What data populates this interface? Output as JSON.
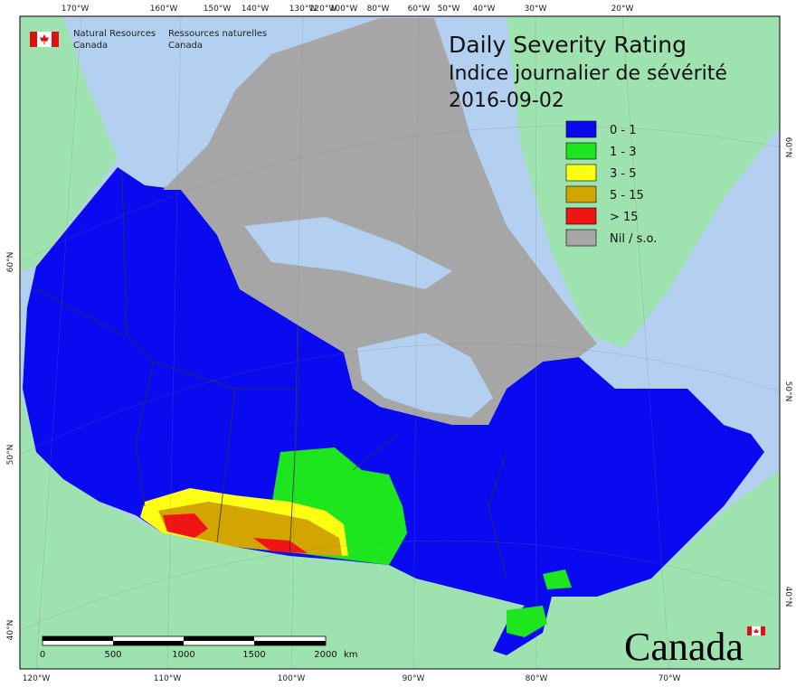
{
  "header": {
    "agency_en": [
      "Natural Resources",
      "Canada"
    ],
    "agency_fr": [
      "Ressources naturelles",
      "Canada"
    ]
  },
  "title": {
    "line1": "Daily Severity Rating",
    "line2": "Indice journalier de sévérité",
    "date": "2016-09-02"
  },
  "legend": [
    {
      "label": "0 - 1",
      "color": "#0a0af0"
    },
    {
      "label": "1 - 3",
      "color": "#1ee61e"
    },
    {
      "label": "3 - 5",
      "color": "#ffff14"
    },
    {
      "label": "5 - 15",
      "color": "#d2a500"
    },
    {
      "label": "> 15",
      "color": "#f01414"
    },
    {
      "label": "Nil / s.o.",
      "color": "#a6a6a6"
    }
  ],
  "axis_labels": {
    "top": [
      "170°W",
      "160°W",
      "150°W",
      "140°W",
      "130°W",
      "120°W",
      "100°W",
      "80°W",
      "60°W",
      "50°W",
      "40°W",
      "30°W",
      "20°W"
    ],
    "bottom": [
      "120°W",
      "110°W",
      "100°W",
      "90°W",
      "80°W",
      "70°W"
    ],
    "left": [
      "60°N",
      "50°N",
      "40°N"
    ],
    "right": [
      "60°N",
      "50°N",
      "40°N"
    ]
  },
  "scale_bar": {
    "ticks": [
      0,
      500,
      1000,
      1500,
      2000
    ],
    "unit": "km"
  },
  "wordmark": "Canada"
}
